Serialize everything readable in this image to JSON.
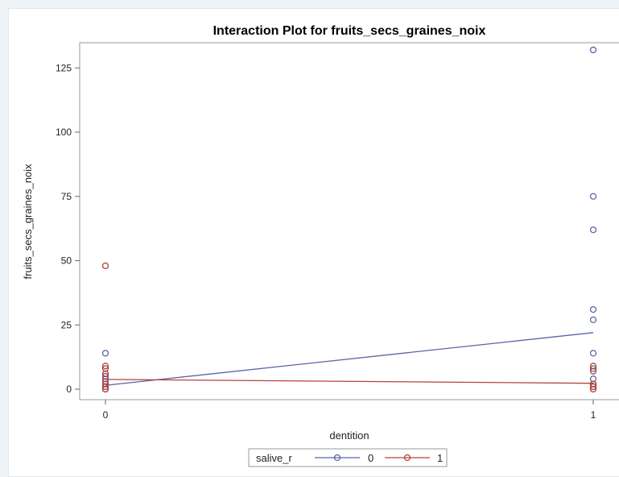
{
  "chart_data": {
    "type": "scatter",
    "title": "Interaction Plot for fruits_secs_graines_noix",
    "xlabel": "dentition",
    "ylabel": "fruits_secs_graines_noix",
    "x_ticks": [
      "0",
      "1"
    ],
    "y_ticks": [
      "0",
      "25",
      "50",
      "75",
      "100",
      "125"
    ],
    "xlim": [
      -0.05,
      1.05
    ],
    "ylim": [
      -2,
      135
    ],
    "grid": false,
    "legend": {
      "title": "salive_r",
      "position": "bottom"
    },
    "series": [
      {
        "name": "0",
        "color": "#5a64a8",
        "points": [
          {
            "x": 0,
            "y": 14
          },
          {
            "x": 0,
            "y": 6
          },
          {
            "x": 0,
            "y": 5
          },
          {
            "x": 0,
            "y": 3
          },
          {
            "x": 0,
            "y": 2
          },
          {
            "x": 0,
            "y": 1
          },
          {
            "x": 0,
            "y": 0
          },
          {
            "x": 0,
            "y": 0
          },
          {
            "x": 1,
            "y": 132
          },
          {
            "x": 1,
            "y": 75
          },
          {
            "x": 1,
            "y": 62
          },
          {
            "x": 1,
            "y": 31
          },
          {
            "x": 1,
            "y": 27
          },
          {
            "x": 1,
            "y": 14
          },
          {
            "x": 1,
            "y": 8
          },
          {
            "x": 1,
            "y": 4
          },
          {
            "x": 1,
            "y": 2
          },
          {
            "x": 1,
            "y": 1
          },
          {
            "x": 1,
            "y": 0
          }
        ],
        "means": [
          {
            "x": 0,
            "y": 1.5
          },
          {
            "x": 1,
            "y": 22
          }
        ]
      },
      {
        "name": "1",
        "color": "#b5423a",
        "points": [
          {
            "x": 0,
            "y": 48
          },
          {
            "x": 0,
            "y": 9
          },
          {
            "x": 0,
            "y": 8
          },
          {
            "x": 0,
            "y": 6
          },
          {
            "x": 0,
            "y": 4
          },
          {
            "x": 0,
            "y": 2
          },
          {
            "x": 0,
            "y": 1
          },
          {
            "x": 0,
            "y": 0
          },
          {
            "x": 1,
            "y": 9
          },
          {
            "x": 1,
            "y": 7
          },
          {
            "x": 1,
            "y": 2
          },
          {
            "x": 1,
            "y": 1
          },
          {
            "x": 1,
            "y": 0
          }
        ],
        "means": [
          {
            "x": 0,
            "y": 3.8
          },
          {
            "x": 1,
            "y": 2.3
          }
        ]
      }
    ]
  }
}
